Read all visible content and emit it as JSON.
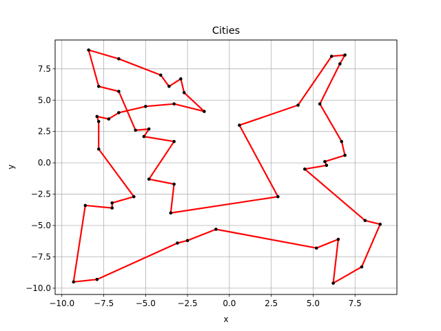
{
  "chart_data": {
    "type": "line",
    "title": "Cities",
    "xlabel": "x",
    "ylabel": "y",
    "xlim": [
      -10.4,
      10.0
    ],
    "ylim": [
      -10.5,
      9.8
    ],
    "grid": true,
    "x_ticks": [
      -10.0,
      -7.5,
      -5.0,
      -2.5,
      0.0,
      2.5,
      5.0,
      7.5
    ],
    "x_tick_labels": [
      "−10.0",
      "−7.5",
      "−5.0",
      "−2.5",
      "0.0",
      "2.5",
      "5.0",
      "7.5"
    ],
    "y_ticks": [
      -10.0,
      -7.5,
      -5.0,
      -2.5,
      0.0,
      2.5,
      5.0,
      7.5
    ],
    "y_tick_labels": [
      "−10.0",
      "−7.5",
      "−5.0",
      "−2.5",
      "0.0",
      "2.5",
      "5.0",
      "7.5"
    ],
    "colors": {
      "route": "#ff0000",
      "cities": "#000000",
      "grid": "#b0b0b0"
    },
    "route": [
      [
        -8.4,
        9.0
      ],
      [
        -6.6,
        8.3
      ],
      [
        -4.1,
        7.0
      ],
      [
        -3.6,
        6.1
      ],
      [
        -2.9,
        6.7
      ],
      [
        -2.7,
        5.6
      ],
      [
        -1.5,
        4.1
      ],
      [
        -3.3,
        4.7
      ],
      [
        -5.0,
        4.5
      ],
      [
        -6.6,
        4.0
      ],
      [
        -7.2,
        3.5
      ],
      [
        -7.9,
        3.7
      ],
      [
        -7.8,
        3.3
      ],
      [
        -7.8,
        1.1
      ],
      [
        -5.7,
        -2.7
      ],
      [
        -7.0,
        -3.2
      ],
      [
        -7.0,
        -3.6
      ],
      [
        -8.6,
        -3.4
      ],
      [
        -9.3,
        -9.5
      ],
      [
        -7.9,
        -9.3
      ],
      [
        -3.1,
        -6.4
      ],
      [
        -2.5,
        -6.2
      ],
      [
        -0.8,
        -5.3
      ],
      [
        5.2,
        -6.8
      ],
      [
        6.5,
        -6.1
      ],
      [
        6.2,
        -9.6
      ],
      [
        7.9,
        -8.3
      ],
      [
        9.0,
        -4.9
      ],
      [
        8.1,
        -4.6
      ],
      [
        4.5,
        -0.5
      ],
      [
        5.8,
        -0.2
      ],
      [
        5.7,
        0.1
      ],
      [
        6.9,
        0.6
      ],
      [
        6.7,
        1.7
      ],
      [
        5.4,
        4.7
      ],
      [
        6.6,
        7.9
      ],
      [
        6.9,
        8.6
      ],
      [
        6.1,
        8.5
      ],
      [
        4.1,
        4.6
      ],
      [
        0.6,
        3.0
      ],
      [
        2.9,
        -2.7
      ],
      [
        -3.5,
        -4.0
      ],
      [
        -3.3,
        -1.7
      ],
      [
        -4.8,
        -1.3
      ],
      [
        -3.3,
        1.7
      ],
      [
        -5.1,
        2.1
      ],
      [
        -4.8,
        2.7
      ],
      [
        -5.6,
        2.6
      ],
      [
        -6.6,
        5.7
      ],
      [
        -7.8,
        6.1
      ],
      [
        -8.4,
        9.0
      ]
    ]
  }
}
